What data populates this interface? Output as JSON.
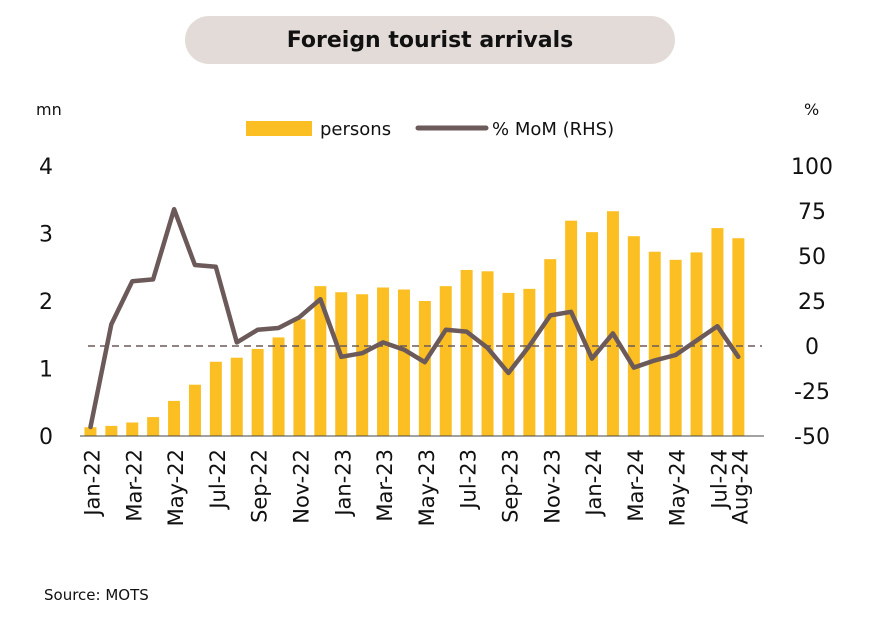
{
  "chart_data": {
    "type": "bar",
    "title": "Foreign tourist arrivals",
    "source": "Source: MOTS",
    "y_left_unit": "mn",
    "y_right_unit": "%",
    "y_left_ticks": [
      "0",
      "1",
      "2",
      "3",
      "4"
    ],
    "y_right_ticks": [
      "-50",
      "-25",
      "0",
      "25",
      "50",
      "75",
      "100"
    ],
    "ylim_left": [
      0,
      4
    ],
    "ylim_right": [
      -50,
      100
    ],
    "categories": [
      "Jan-22",
      "Feb-22",
      "Mar-22",
      "Apr-22",
      "May-22",
      "Jun-22",
      "Jul-22",
      "Aug-22",
      "Sep-22",
      "Oct-22",
      "Nov-22",
      "Dec-22",
      "Jan-23",
      "Feb-23",
      "Mar-23",
      "Apr-23",
      "May-23",
      "Jun-23",
      "Jul-23",
      "Aug-23",
      "Sep-23",
      "Oct-23",
      "Nov-23",
      "Dec-23",
      "Jan-24",
      "Feb-24",
      "Mar-24",
      "Apr-24",
      "May-24",
      "Jun-24",
      "Jul-24",
      "Aug-24"
    ],
    "x_tick_labels": [
      "Jan-22",
      "Mar-22",
      "May-22",
      "Jul-22",
      "Sep-22",
      "Nov-22",
      "Jan-23",
      "Mar-23",
      "May-23",
      "Jul-23",
      "Sep-23",
      "Nov-23",
      "Jan-24",
      "Mar-24",
      "May-24",
      "Jul-24",
      "Aug-24"
    ],
    "legend_position": "top-center",
    "series": [
      {
        "name": "persons",
        "type": "bar",
        "axis": "left",
        "color": "#fbbf24",
        "values": [
          0.13,
          0.15,
          0.2,
          0.28,
          0.52,
          0.76,
          1.1,
          1.16,
          1.29,
          1.46,
          1.73,
          2.22,
          2.13,
          2.1,
          2.2,
          2.17,
          2.0,
          2.22,
          2.46,
          2.44,
          2.12,
          2.18,
          2.62,
          3.19,
          3.02,
          3.33,
          2.96,
          2.73,
          2.61,
          2.72,
          3.08,
          2.93
        ]
      },
      {
        "name": "% MoM (RHS)",
        "type": "line",
        "axis": "right",
        "color": "#6b5a59",
        "values": [
          -45,
          12,
          36,
          37,
          76,
          45,
          44,
          2,
          9,
          10,
          16,
          26,
          -6,
          -4,
          2,
          -2,
          -9,
          9,
          8,
          -1,
          -15,
          0,
          17,
          19,
          -7,
          7,
          -12,
          -8,
          -5,
          3,
          11,
          -6
        ]
      }
    ],
    "reference_line": {
      "axis": "right",
      "value": 0,
      "style": "dashed",
      "color": "#6b5a59"
    }
  }
}
